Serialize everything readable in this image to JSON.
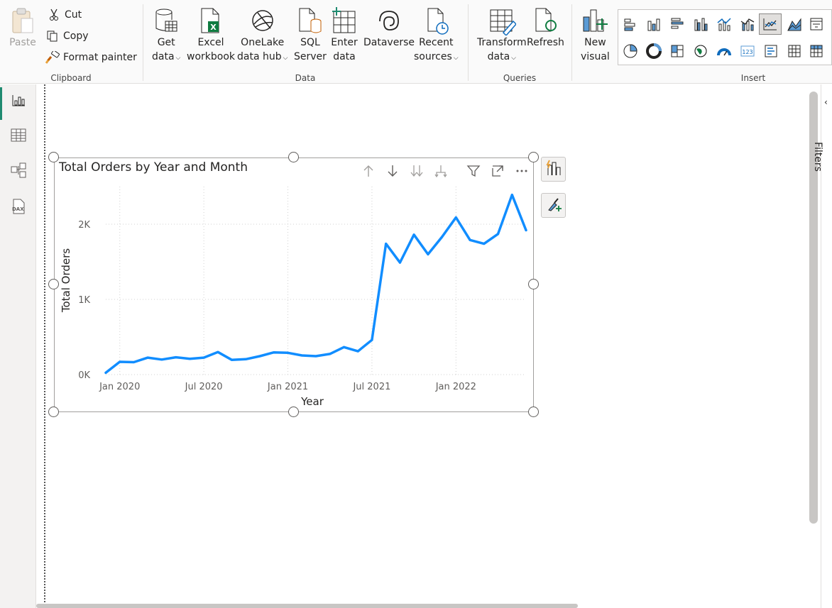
{
  "ribbon": {
    "clipboard": {
      "group_label": "Clipboard",
      "paste": "Paste",
      "cut": "Cut",
      "copy": "Copy",
      "format_painter": "Format painter"
    },
    "data": {
      "group_label": "Data",
      "buttons": [
        {
          "line1": "Get",
          "line2": "data",
          "dropdown": true
        },
        {
          "line1": "Excel",
          "line2": "workbook",
          "dropdown": false
        },
        {
          "line1": "OneLake",
          "line2": "data hub",
          "dropdown": true
        },
        {
          "line1": "SQL",
          "line2": "Server",
          "dropdown": false
        },
        {
          "line1": "Enter",
          "line2": "data",
          "dropdown": false
        },
        {
          "line1": "Dataverse",
          "line2": "",
          "dropdown": false
        },
        {
          "line1": "Recent",
          "line2": "sources",
          "dropdown": true
        }
      ]
    },
    "queries": {
      "group_label": "Queries",
      "transform": {
        "line1": "Transform",
        "line2": "data"
      },
      "refresh": "Refresh"
    },
    "insert": {
      "group_label": "Insert",
      "new_visual": {
        "line1": "New",
        "line2": "visual"
      },
      "selected_visual": "line-chart"
    }
  },
  "nav": {
    "items": [
      "report-view",
      "table-view",
      "model-view",
      "dax-query-view"
    ],
    "active": "report-view"
  },
  "filters_pane": {
    "label": "Filters"
  },
  "colors": {
    "accent": "#1f8a70",
    "line": "#118dff",
    "grid": "#d0d0d0",
    "text": "#252423",
    "muted": "#605e5c"
  },
  "visual": {
    "title": "Total Orders by Year and Month"
  },
  "chart_data": {
    "type": "line",
    "title": "Total Orders by Year and Month",
    "xlabel": "Year",
    "ylabel": "Total Orders",
    "x_tick_labels": [
      "Jan 2020",
      "Jul 2020",
      "Jan 2021",
      "Jul 2021",
      "Jan 2022"
    ],
    "y_tick_labels": [
      "0K",
      "1K",
      "2K"
    ],
    "ylim": [
      0,
      2500
    ],
    "grid": true,
    "series": [
      {
        "values": [
          {
            "x": "2019-12",
            "y": 25
          },
          {
            "x": "2020-01",
            "y": 170
          },
          {
            "x": "2020-02",
            "y": 165
          },
          {
            "x": "2020-03",
            "y": 225
          },
          {
            "x": "2020-04",
            "y": 200
          },
          {
            "x": "2020-05",
            "y": 230
          },
          {
            "x": "2020-06",
            "y": 210
          },
          {
            "x": "2020-07",
            "y": 225
          },
          {
            "x": "2020-08",
            "y": 300
          },
          {
            "x": "2020-09",
            "y": 195
          },
          {
            "x": "2020-10",
            "y": 205
          },
          {
            "x": "2020-11",
            "y": 245
          },
          {
            "x": "2020-12",
            "y": 295
          },
          {
            "x": "2021-01",
            "y": 290
          },
          {
            "x": "2021-02",
            "y": 255
          },
          {
            "x": "2021-03",
            "y": 245
          },
          {
            "x": "2021-04",
            "y": 275
          },
          {
            "x": "2021-05",
            "y": 365
          },
          {
            "x": "2021-06",
            "y": 310
          },
          {
            "x": "2021-07",
            "y": 460
          },
          {
            "x": "2021-08",
            "y": 1740
          },
          {
            "x": "2021-09",
            "y": 1490
          },
          {
            "x": "2021-10",
            "y": 1860
          },
          {
            "x": "2021-11",
            "y": 1600
          },
          {
            "x": "2021-12",
            "y": 1830
          },
          {
            "x": "2022-01",
            "y": 2090
          },
          {
            "x": "2022-02",
            "y": 1790
          },
          {
            "x": "2022-03",
            "y": 1740
          },
          {
            "x": "2022-04",
            "y": 1870
          },
          {
            "x": "2022-05",
            "y": 2390
          },
          {
            "x": "2022-06",
            "y": 1920
          }
        ]
      }
    ]
  }
}
